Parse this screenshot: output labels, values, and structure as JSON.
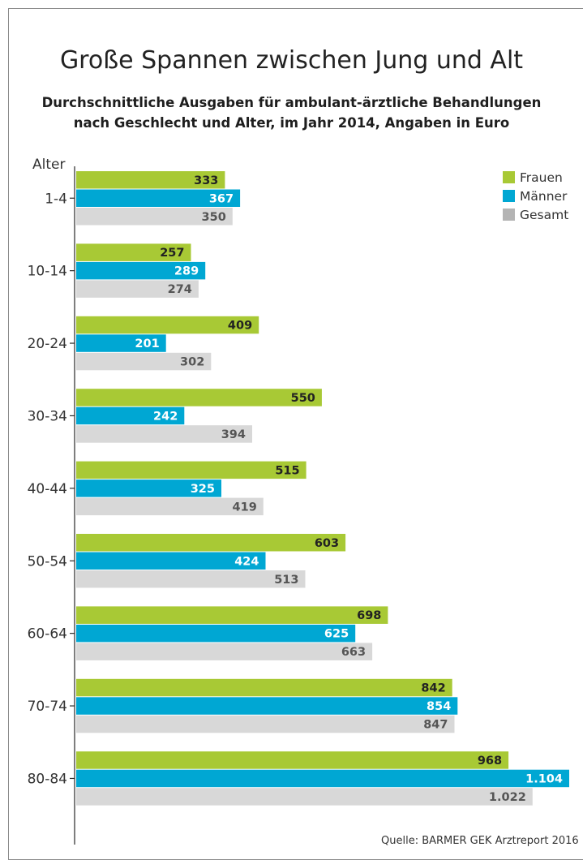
{
  "chart_data": {
    "type": "bar",
    "orientation": "horizontal",
    "title": "Große Spannen zwischen Jung und Alt",
    "subtitle": [
      "Durchschnittliche Ausgaben für ambulant-ärztliche Behandlungen",
      "nach Geschlecht und Alter, im Jahr 2014, Angaben in Euro"
    ],
    "category_axis_label": "Alter",
    "categories": [
      "1-4",
      "10-14",
      "20-24",
      "30-34",
      "40-44",
      "50-54",
      "60-64",
      "70-74",
      "80-84"
    ],
    "series": [
      {
        "name": "Frauen",
        "color": "#a8c935",
        "values": [
          333,
          257,
          409,
          550,
          515,
          603,
          698,
          842,
          968
        ],
        "labels": [
          "333",
          "257",
          "409",
          "550",
          "515",
          "603",
          "698",
          "842",
          "968"
        ]
      },
      {
        "name": "Männer",
        "color": "#00a7d3",
        "values": [
          367,
          289,
          201,
          242,
          325,
          424,
          625,
          854,
          1104
        ],
        "labels": [
          "367",
          "289",
          "201",
          "242",
          "325",
          "424",
          "625",
          "854",
          "1.104"
        ]
      },
      {
        "name": "Gesamt",
        "color": "#d8d8d8",
        "values": [
          350,
          274,
          302,
          394,
          419,
          513,
          663,
          847,
          1022
        ],
        "labels": [
          "350",
          "274",
          "302",
          "394",
          "419",
          "513",
          "663",
          "847",
          "1.022"
        ]
      }
    ],
    "legend_placement": "top-right",
    "label_colors": [
      "#222222",
      "#ffffff",
      "#555555"
    ],
    "legend_swatch_colors": [
      "#a8c935",
      "#00a7d3",
      "#b4b4b4"
    ],
    "grid": false,
    "xlim": [
      0,
      1104
    ]
  },
  "source": "Quelle: BARMER GEK Arztreport 2016"
}
